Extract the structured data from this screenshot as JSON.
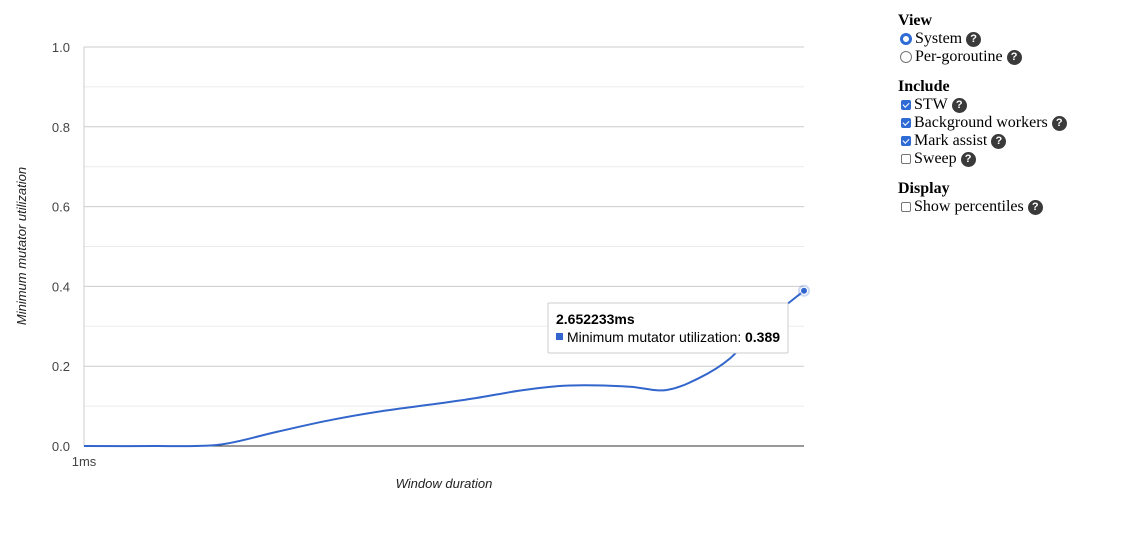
{
  "chart_data": {
    "type": "line",
    "xlabel": "Window duration",
    "ylabel": "Minimum mutator utilization",
    "x_tick_labels": [
      "1ms"
    ],
    "y_ticks": [
      0.0,
      0.2,
      0.4,
      0.6,
      0.8,
      1.0
    ],
    "y_tick_labels": [
      "0.0",
      "0.2",
      "0.4",
      "0.6",
      "0.8",
      "1.0"
    ],
    "ylim": [
      0,
      1
    ],
    "x_scale": "log",
    "x_range_ms": [
      1,
      2.652233
    ],
    "series": [
      {
        "name": "Minimum mutator utilization",
        "color": "#3366cc",
        "x_ms": [
          1.0,
          1.1,
          1.2,
          1.3,
          1.4,
          1.5,
          1.6,
          1.7,
          1.8,
          1.9,
          2.0,
          2.1,
          2.2,
          2.3,
          2.4,
          2.5,
          2.652233
        ],
        "y": [
          0.0,
          0.0,
          0.003,
          0.036,
          0.066,
          0.088,
          0.104,
          0.12,
          0.138,
          0.15,
          0.152,
          0.148,
          0.14,
          0.17,
          0.22,
          0.3,
          0.389
        ]
      }
    ],
    "tooltip": {
      "title": "2.652233ms",
      "series_label": "Minimum mutator utilization:",
      "value": "0.389"
    }
  },
  "controls": {
    "view": {
      "title": "View",
      "options": [
        {
          "label": "System",
          "checked": true
        },
        {
          "label": "Per-goroutine",
          "checked": false
        }
      ]
    },
    "include": {
      "title": "Include",
      "options": [
        {
          "label": "STW",
          "checked": true
        },
        {
          "label": "Background workers",
          "checked": true
        },
        {
          "label": "Mark assist",
          "checked": true
        },
        {
          "label": "Sweep",
          "checked": false
        }
      ]
    },
    "display": {
      "title": "Display",
      "options": [
        {
          "label": "Show percentiles",
          "checked": false
        }
      ]
    },
    "help_glyph": "?"
  }
}
